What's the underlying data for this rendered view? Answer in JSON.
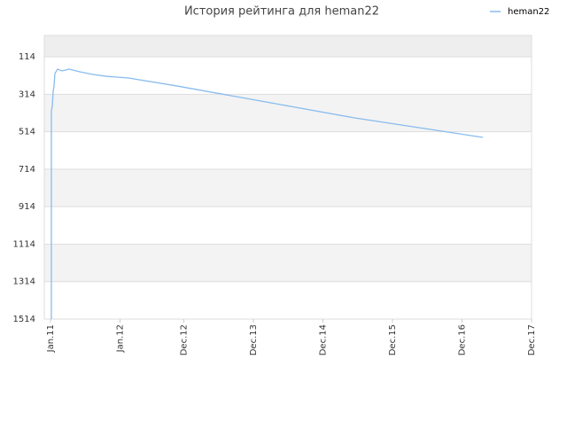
{
  "chart_data": {
    "type": "line",
    "title": "История рейтинга для heman22",
    "x": [
      0.15,
      0.15,
      0.31,
      0.46,
      0.61,
      0.76,
      1.22,
      1.99,
      3.21,
      5.05,
      7.34,
      9.63,
      13.46,
      21.87,
      37.16,
      52.45,
      74.6
    ],
    "series": [
      {
        "name": "heman22",
        "color": "#88bbee",
        "values": [
          1514,
          402,
          378,
          298,
          270,
          203,
          180,
          189,
          180,
          194,
          208,
          218,
          227,
          270,
          355,
          440,
          544
        ]
      }
    ],
    "xlim": [
      -1.07,
      83
    ],
    "xticks": [
      {
        "value": 0,
        "label": "Jan.11"
      },
      {
        "value": 12,
        "label": "Jan.12"
      },
      {
        "value": 23,
        "label": "Dec.12"
      },
      {
        "value": 35,
        "label": "Dec.13"
      },
      {
        "value": 47,
        "label": "Dec.14"
      },
      {
        "value": 59,
        "label": "Dec.15"
      },
      {
        "value": 71,
        "label": "Dec.16"
      },
      {
        "value": 83,
        "label": "Dec.17"
      }
    ],
    "ylim": [
      1514,
      0
    ],
    "yticks": [
      114,
      314,
      514,
      714,
      914,
      1114,
      1314,
      1514
    ],
    "y_inverted": true,
    "grid": true,
    "legend": "top-right"
  }
}
